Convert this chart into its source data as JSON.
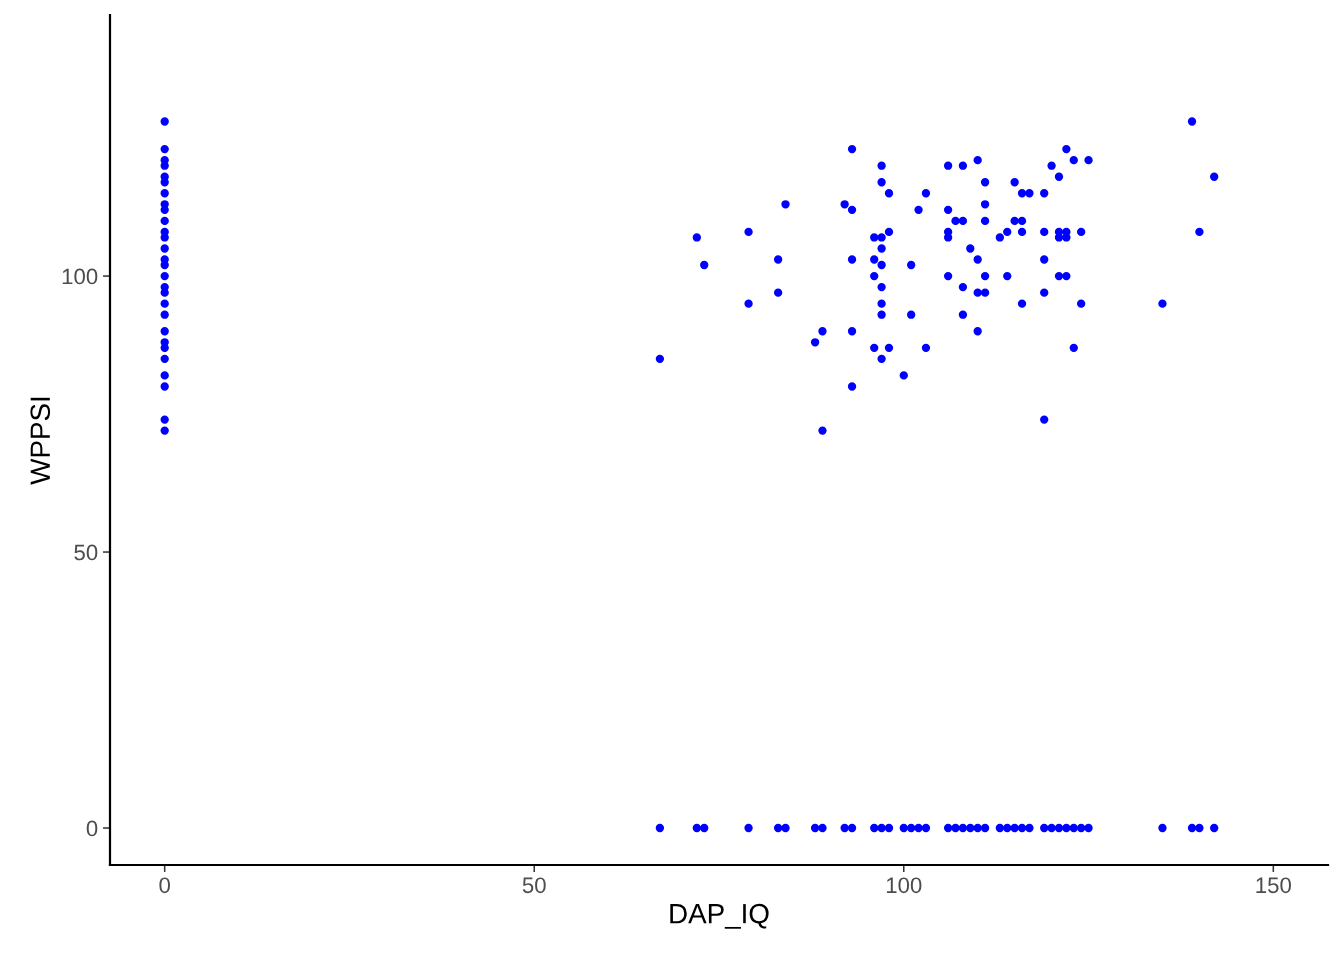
{
  "chart_data": {
    "type": "scatter",
    "xlabel": "DAP_IQ",
    "ylabel": "WPPSI",
    "series": [
      {
        "color": "#0000ff",
        "x": [
          67,
          72,
          73,
          79,
          79,
          83,
          83,
          84,
          88,
          89,
          89,
          92,
          93,
          93,
          93,
          93,
          93,
          96,
          96,
          96,
          96,
          97,
          97,
          97,
          97,
          97,
          97,
          97,
          97,
          97,
          98,
          98,
          98,
          100,
          101,
          101,
          102,
          103,
          103,
          106,
          106,
          106,
          106,
          106,
          107,
          108,
          108,
          108,
          108,
          109,
          110,
          110,
          110,
          110,
          111,
          111,
          111,
          111,
          111,
          113,
          114,
          114,
          115,
          115,
          116,
          116,
          116,
          116,
          117,
          119,
          119,
          119,
          119,
          119,
          120,
          121,
          121,
          121,
          121,
          122,
          122,
          122,
          122,
          123,
          123,
          124,
          124,
          125,
          135,
          139,
          140,
          142
        ],
        "values": [
          85,
          107,
          102,
          108,
          95,
          103,
          97,
          113,
          88,
          90,
          72,
          113,
          123,
          112,
          103,
          90,
          80,
          107,
          103,
          100,
          87,
          120,
          117,
          107,
          105,
          102,
          98,
          95,
          93,
          85,
          115,
          108,
          87,
          82,
          102,
          93,
          112,
          115,
          87,
          120,
          112,
          108,
          107,
          100,
          110,
          120,
          110,
          98,
          93,
          105,
          121,
          103,
          97,
          90,
          117,
          113,
          110,
          100,
          97,
          107,
          108,
          100,
          117,
          110,
          115,
          110,
          108,
          95,
          115,
          115,
          108,
          103,
          97,
          74,
          120,
          118,
          108,
          107,
          100,
          123,
          108,
          107,
          100,
          121,
          87,
          108,
          95,
          121,
          95,
          128,
          108,
          118
        ]
      },
      {
        "color": "#0000ff",
        "x": [
          0,
          0,
          0,
          0,
          0,
          0,
          0,
          0,
          0,
          0,
          0,
          0,
          0,
          0,
          0,
          0,
          0,
          0,
          0,
          0,
          0,
          0,
          0,
          0,
          0,
          0,
          0,
          0
        ],
        "values": [
          128,
          123,
          121,
          120,
          118,
          117,
          115,
          113,
          112,
          110,
          108,
          107,
          105,
          103,
          102,
          100,
          98,
          97,
          95,
          93,
          90,
          88,
          87,
          85,
          82,
          80,
          74,
          72
        ]
      },
      {
        "color": "#0000ff",
        "x": [
          67,
          72,
          73,
          79,
          83,
          84,
          88,
          89,
          92,
          93,
          96,
          97,
          98,
          100,
          101,
          102,
          103,
          106,
          107,
          108,
          109,
          110,
          111,
          113,
          114,
          115,
          116,
          117,
          119,
          120,
          121,
          122,
          123,
          124,
          125,
          135,
          139,
          140,
          142
        ],
        "values": [
          0,
          0,
          0,
          0,
          0,
          0,
          0,
          0,
          0,
          0,
          0,
          0,
          0,
          0,
          0,
          0,
          0,
          0,
          0,
          0,
          0,
          0,
          0,
          0,
          0,
          0,
          0,
          0,
          0,
          0,
          0,
          0,
          0,
          0,
          0,
          0,
          0,
          0,
          0
        ]
      }
    ],
    "xlim": [
      -7.4,
      157.4
    ],
    "ylim": [
      -6.7,
      147.3
    ],
    "xticks": [
      0,
      50,
      100,
      150
    ],
    "yticks": [
      0,
      50,
      100
    ],
    "grid": false,
    "legend": false,
    "marker": "circle"
  }
}
